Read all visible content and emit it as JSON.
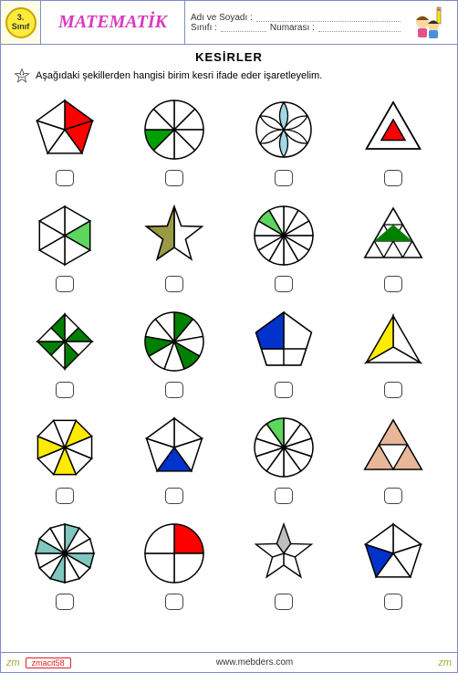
{
  "grade": {
    "num": "3.",
    "label": "Sınıf"
  },
  "subject": "MATEMATİK",
  "info": {
    "name_label": "Adı ve Soyadı :",
    "class_label": "Sınıfı :",
    "number_label": "Numarası :"
  },
  "section_title": "KESİRLER",
  "instruction": "Aşağıdaki  şekillerden hangisi birim kesri ifade eder işaretleyelim.",
  "footer": {
    "tag": "zm",
    "author": "zmacit58",
    "url": "www.mebders.com"
  },
  "colors": {
    "red": "#ff0000",
    "green": "#00a000",
    "lime": "#5cd65c",
    "skyblue": "#a5d8e6",
    "blue": "#0033cc",
    "yellow": "#ffeb00",
    "olive": "#9a9a44",
    "gray": "#bfbfbf",
    "pink": "#e8b698",
    "teal": "#7fc7bf",
    "black": "#000000",
    "white": "#ffffff",
    "dgreen": "#008000"
  },
  "shapes": [
    {
      "id": "pentagon5",
      "parts": 5,
      "filled": [
        0,
        1
      ],
      "fill": "#ff0000"
    },
    {
      "id": "circle8",
      "parts": 8,
      "filled": [
        5
      ],
      "fill": "#00a000"
    },
    {
      "id": "flower6",
      "parts": 6,
      "filled": [
        0,
        3
      ],
      "fill": "#a5d8e6"
    },
    {
      "id": "tri-in-tri",
      "parts": 1,
      "filled": [
        0
      ],
      "fill": "#ff0000"
    },
    {
      "id": "hex6",
      "parts": 6,
      "filled": [
        1
      ],
      "fill": "#5cd65c"
    },
    {
      "id": "star5-half",
      "parts": 2,
      "filled": [
        0
      ],
      "fill": "#9a9a44"
    },
    {
      "id": "circle12",
      "parts": 12,
      "filled": [
        10
      ],
      "fill": "#5cd65c"
    },
    {
      "id": "tri9",
      "parts": 9,
      "filled": [
        4
      ],
      "fill": "#008000"
    },
    {
      "id": "square8",
      "parts": 8,
      "filled": [
        1,
        3,
        5,
        7
      ],
      "fill": "#008000"
    },
    {
      "id": "circle9",
      "parts": 9,
      "filled": [
        0,
        3,
        6
      ],
      "fill": "#008000"
    },
    {
      "id": "pentagon4",
      "parts": 4,
      "filled": [
        1
      ],
      "fill": "#0033cc"
    },
    {
      "id": "tri3",
      "parts": 3,
      "filled": [
        2
      ],
      "fill": "#ffeb00"
    },
    {
      "id": "octagon8",
      "parts": 8,
      "filled": [
        0,
        3,
        5
      ],
      "fill": "#ffeb00"
    },
    {
      "id": "pentagon5b",
      "parts": 5,
      "filled": [
        2
      ],
      "fill": "#0033cc"
    },
    {
      "id": "circle10",
      "parts": 10,
      "filled": [
        9
      ],
      "fill": "#5cd65c"
    },
    {
      "id": "tri-tri6",
      "parts": 6,
      "filled": [
        0,
        3,
        5
      ],
      "fill": "#e8b698"
    },
    {
      "id": "hex12",
      "parts": 12,
      "filled": [
        0,
        3,
        6,
        9
      ],
      "fill": "#7fc7bf"
    },
    {
      "id": "circle4",
      "parts": 4,
      "filled": [
        0
      ],
      "fill": "#ff0000"
    },
    {
      "id": "star5b",
      "parts": 5,
      "filled": [
        0
      ],
      "fill": "#bfbfbf"
    },
    {
      "id": "pentagon5c",
      "parts": 5,
      "filled": [
        3
      ],
      "fill": "#0033cc"
    }
  ]
}
